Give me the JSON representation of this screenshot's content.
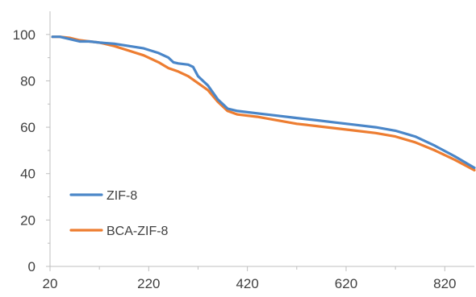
{
  "chart_data": {
    "type": "line",
    "title": "",
    "xlabel": "",
    "ylabel": "",
    "xlim": [
      20,
      880
    ],
    "ylim": [
      0,
      110
    ],
    "x_ticks": [
      20,
      220,
      420,
      620,
      820
    ],
    "y_ticks": [
      0,
      20,
      40,
      60,
      80,
      100
    ],
    "grid": false,
    "legend": "bottom-left",
    "series": [
      {
        "name": "ZIF-8",
        "color": "#4a86c8",
        "x": [
          25,
          40,
          60,
          80,
          100,
          120,
          150,
          180,
          210,
          240,
          260,
          270,
          280,
          300,
          310,
          320,
          340,
          360,
          380,
          400,
          420,
          440,
          480,
          520,
          560,
          600,
          640,
          680,
          720,
          760,
          800,
          840,
          880
        ],
        "y": [
          99,
          99,
          98,
          97,
          97,
          96.5,
          96,
          95,
          94,
          92,
          90,
          88,
          87.5,
          87,
          86,
          82,
          78,
          72,
          68,
          67,
          66.5,
          66,
          65,
          64,
          63,
          62,
          61,
          60,
          58.5,
          56,
          52,
          47.5,
          42.5
        ]
      },
      {
        "name": "BCA-ZIF-8",
        "color": "#ed7d31",
        "x": [
          25,
          40,
          60,
          80,
          100,
          120,
          150,
          180,
          210,
          240,
          260,
          280,
          300,
          320,
          340,
          360,
          380,
          400,
          420,
          440,
          480,
          520,
          560,
          600,
          640,
          680,
          720,
          760,
          800,
          840,
          880
        ],
        "y": [
          99,
          99,
          98.5,
          97.5,
          97,
          96.5,
          95,
          93,
          91,
          88,
          85.5,
          84,
          82,
          79,
          76,
          71,
          67,
          65.5,
          65,
          64.5,
          63,
          61.5,
          60.5,
          59.5,
          58.5,
          57.5,
          56,
          53.5,
          50,
          46,
          41.5
        ]
      }
    ]
  }
}
